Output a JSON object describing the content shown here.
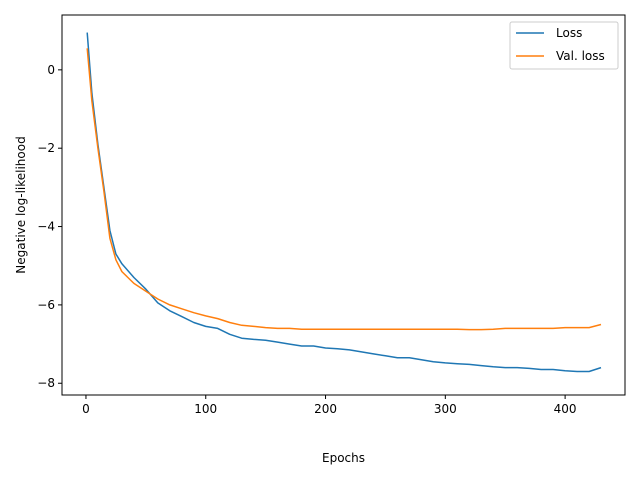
{
  "chart_data": {
    "type": "line",
    "title": "",
    "xlabel": "Epochs",
    "ylabel": "Negative log-likelihood",
    "xlim": [
      -20,
      450
    ],
    "ylim": [
      -8.3,
      1.4
    ],
    "xticks": [
      0,
      100,
      200,
      300,
      400
    ],
    "yticks": [
      0,
      -2,
      -4,
      -6,
      -8
    ],
    "xtick_labels": [
      "0",
      "100",
      "200",
      "300",
      "400"
    ],
    "ytick_labels": [
      "0",
      "−2",
      "−4",
      "−6",
      "−8"
    ],
    "grid": false,
    "legend_position": "top-right",
    "series": [
      {
        "name": "Loss",
        "color": "#1f77b4",
        "x": [
          1,
          5,
          10,
          15,
          20,
          25,
          30,
          40,
          50,
          60,
          70,
          80,
          90,
          100,
          110,
          120,
          130,
          140,
          150,
          160,
          170,
          180,
          190,
          200,
          210,
          220,
          230,
          240,
          250,
          260,
          270,
          280,
          290,
          300,
          310,
          320,
          330,
          340,
          350,
          360,
          370,
          380,
          390,
          400,
          410,
          420,
          430
        ],
        "y": [
          0.95,
          -0.6,
          -1.9,
          -3.0,
          -4.1,
          -4.7,
          -4.95,
          -5.3,
          -5.6,
          -5.95,
          -6.15,
          -6.3,
          -6.45,
          -6.55,
          -6.6,
          -6.75,
          -6.85,
          -6.88,
          -6.9,
          -6.95,
          -7.0,
          -7.05,
          -7.05,
          -7.1,
          -7.12,
          -7.15,
          -7.2,
          -7.25,
          -7.3,
          -7.35,
          -7.35,
          -7.4,
          -7.45,
          -7.48,
          -7.5,
          -7.52,
          -7.55,
          -7.58,
          -7.6,
          -7.6,
          -7.62,
          -7.65,
          -7.65,
          -7.68,
          -7.7,
          -7.7,
          -7.6
        ]
      },
      {
        "name": "Val. loss",
        "color": "#ff7f0e",
        "x": [
          1,
          5,
          10,
          15,
          20,
          25,
          30,
          40,
          50,
          60,
          70,
          80,
          90,
          100,
          110,
          120,
          130,
          140,
          150,
          160,
          170,
          180,
          190,
          200,
          210,
          220,
          230,
          240,
          250,
          260,
          270,
          280,
          290,
          300,
          310,
          320,
          330,
          340,
          350,
          360,
          370,
          380,
          390,
          400,
          410,
          420,
          430
        ],
        "y": [
          0.55,
          -0.8,
          -2.0,
          -3.1,
          -4.3,
          -4.85,
          -5.15,
          -5.45,
          -5.65,
          -5.85,
          -6.0,
          -6.1,
          -6.2,
          -6.28,
          -6.35,
          -6.45,
          -6.52,
          -6.55,
          -6.58,
          -6.6,
          -6.6,
          -6.62,
          -6.62,
          -6.62,
          -6.62,
          -6.62,
          -6.62,
          -6.62,
          -6.62,
          -6.62,
          -6.62,
          -6.62,
          -6.62,
          -6.62,
          -6.62,
          -6.63,
          -6.63,
          -6.62,
          -6.6,
          -6.6,
          -6.6,
          -6.6,
          -6.6,
          -6.58,
          -6.58,
          -6.58,
          -6.5
        ]
      }
    ]
  }
}
